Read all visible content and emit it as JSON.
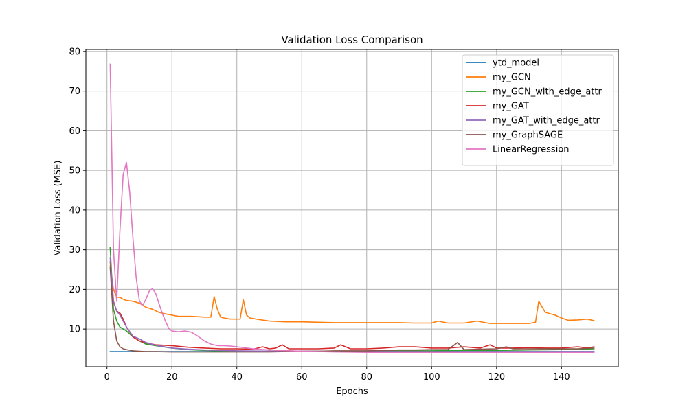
{
  "chart_data": {
    "type": "line",
    "title": "Validation Loss Comparison",
    "xlabel": "Epochs",
    "ylabel": "Validation Loss (MSE)",
    "xlim": [
      -6.5,
      157.5
    ],
    "ylim": [
      0.5,
      80.5
    ],
    "xticks": [
      0,
      20,
      40,
      60,
      80,
      100,
      120,
      140
    ],
    "yticks": [
      10,
      20,
      30,
      40,
      50,
      60,
      70,
      80
    ],
    "grid": true,
    "legend_position": "top-right",
    "series": [
      {
        "name": "ytd_model",
        "color": "#1f77b4",
        "x": [
          1,
          150
        ],
        "y": [
          4.3,
          4.3
        ]
      },
      {
        "name": "my_GCN",
        "color": "#ff7f0e",
        "x": [
          1,
          2,
          3,
          4,
          5,
          6,
          8,
          10,
          12,
          14,
          16,
          18,
          20,
          22,
          24,
          26,
          28,
          30,
          32,
          33,
          34,
          35,
          36,
          38,
          40,
          41,
          42,
          43,
          44,
          46,
          50,
          55,
          60,
          65,
          70,
          75,
          80,
          85,
          90,
          95,
          100,
          102,
          105,
          110,
          114,
          118,
          120,
          125,
          130,
          132,
          133,
          135,
          138,
          140,
          142,
          145,
          148,
          150
        ],
        "y": [
          26,
          20,
          18,
          18,
          17.5,
          17.2,
          17,
          16.5,
          15.5,
          15,
          14.2,
          13.8,
          13.5,
          13.2,
          13.2,
          13.2,
          13.1,
          13,
          13,
          18.2,
          15,
          13,
          12.8,
          12.5,
          12.5,
          12.5,
          17.4,
          13.5,
          12.8,
          12.5,
          12,
          11.8,
          11.8,
          11.7,
          11.6,
          11.6,
          11.6,
          11.6,
          11.6,
          11.5,
          11.5,
          12,
          11.5,
          11.5,
          12,
          11.4,
          11.4,
          11.4,
          11.4,
          11.7,
          17,
          14.2,
          13.5,
          12.8,
          12.2,
          12.3,
          12.5,
          12.1
        ]
      },
      {
        "name": "my_GCN_with_edge_attr",
        "color": "#2ca02c",
        "x": [
          1,
          2,
          3,
          4,
          5,
          6,
          8,
          10,
          12,
          15,
          20,
          25,
          30,
          35,
          40,
          50,
          60,
          70,
          80,
          90,
          100,
          110,
          120,
          130,
          140,
          150
        ],
        "y": [
          30.5,
          15,
          12,
          10.5,
          10,
          9.5,
          8,
          7,
          6.2,
          5.8,
          5.2,
          4.8,
          4.6,
          4.5,
          4.4,
          4.4,
          4.4,
          4.4,
          4.4,
          4.5,
          4.5,
          4.6,
          4.6,
          4.7,
          4.8,
          5
        ]
      },
      {
        "name": "my_GAT",
        "color": "#d62728",
        "x": [
          1,
          2,
          3,
          4,
          5,
          6,
          8,
          10,
          12,
          15,
          20,
          25,
          30,
          35,
          40,
          45,
          48,
          50,
          52,
          54,
          56,
          60,
          65,
          70,
          72,
          75,
          80,
          85,
          90,
          95,
          100,
          105,
          110,
          115,
          118,
          120,
          125,
          130,
          135,
          140,
          145,
          148,
          150
        ],
        "y": [
          27,
          17,
          14.5,
          14,
          12.5,
          10.5,
          8,
          7,
          6.5,
          6,
          5.8,
          5.4,
          5.2,
          5,
          5,
          4.9,
          5.5,
          5,
          5.2,
          6,
          5,
          5,
          5,
          5.2,
          6,
          5,
          5,
          5.2,
          5.5,
          5.5,
          5.2,
          5.2,
          5.5,
          5.2,
          6,
          5.2,
          5.2,
          5.3,
          5.2,
          5.2,
          5.5,
          5.2,
          5.5
        ]
      },
      {
        "name": "my_GAT_with_edge_attr",
        "color": "#9467bd",
        "x": [
          1,
          2,
          3,
          4,
          5,
          6,
          8,
          10,
          12,
          15,
          20,
          25,
          30,
          35,
          40,
          50,
          60,
          70,
          80,
          90,
          100,
          110,
          120,
          130,
          140,
          150
        ],
        "y": [
          28,
          17,
          14.5,
          13.5,
          12,
          10.5,
          8.2,
          7.5,
          6.6,
          5.9,
          5.2,
          4.9,
          4.7,
          4.6,
          4.5,
          4.4,
          4.4,
          4.4,
          4.3,
          4.3,
          4.3,
          4.3,
          4.3,
          4.3,
          4.3,
          4.3
        ]
      },
      {
        "name": "my_GraphSAGE",
        "color": "#8c564b",
        "x": [
          1,
          2,
          3,
          4,
          5,
          6,
          8,
          10,
          12,
          15,
          20,
          25,
          30,
          35,
          40,
          45,
          50,
          55,
          60,
          65,
          70,
          75,
          80,
          85,
          90,
          95,
          100,
          105,
          108,
          110,
          115,
          120,
          123,
          125,
          130,
          135,
          140,
          145,
          150
        ],
        "y": [
          25.5,
          12,
          7,
          5.5,
          5,
          4.8,
          4.5,
          4.4,
          4.3,
          4.3,
          4.2,
          4.2,
          4.2,
          4.2,
          4.2,
          4.2,
          4.2,
          4.3,
          4.4,
          4.4,
          4.5,
          4.5,
          4.5,
          4.6,
          4.7,
          4.7,
          4.8,
          4.8,
          6.6,
          4.8,
          4.9,
          5,
          5.5,
          5,
          5,
          5,
          5,
          5,
          5.2
        ]
      },
      {
        "name": "LinearRegression",
        "color": "#e377c2",
        "x": [
          1,
          2,
          3,
          4,
          5,
          6,
          7,
          8,
          9,
          10,
          11,
          12,
          13,
          14,
          15,
          16,
          17,
          18,
          19,
          20,
          22,
          24,
          26,
          28,
          30,
          32,
          34,
          36,
          38,
          40,
          45,
          50,
          60,
          70,
          80,
          90,
          100,
          110,
          120,
          130,
          140,
          150
        ],
        "y": [
          76.8,
          30,
          17,
          35,
          49,
          52,
          44.5,
          33,
          23,
          17,
          16,
          17.5,
          19.5,
          20.2,
          19,
          16.5,
          14,
          12,
          10.2,
          9.5,
          9.3,
          9.5,
          9.2,
          8.2,
          7,
          6.2,
          5.8,
          5.8,
          5.7,
          5.5,
          5,
          4.7,
          4.4,
          4.2,
          4.1,
          4.1,
          4.1,
          4.1,
          4.1,
          4.1,
          4.1,
          4.1
        ]
      }
    ]
  }
}
